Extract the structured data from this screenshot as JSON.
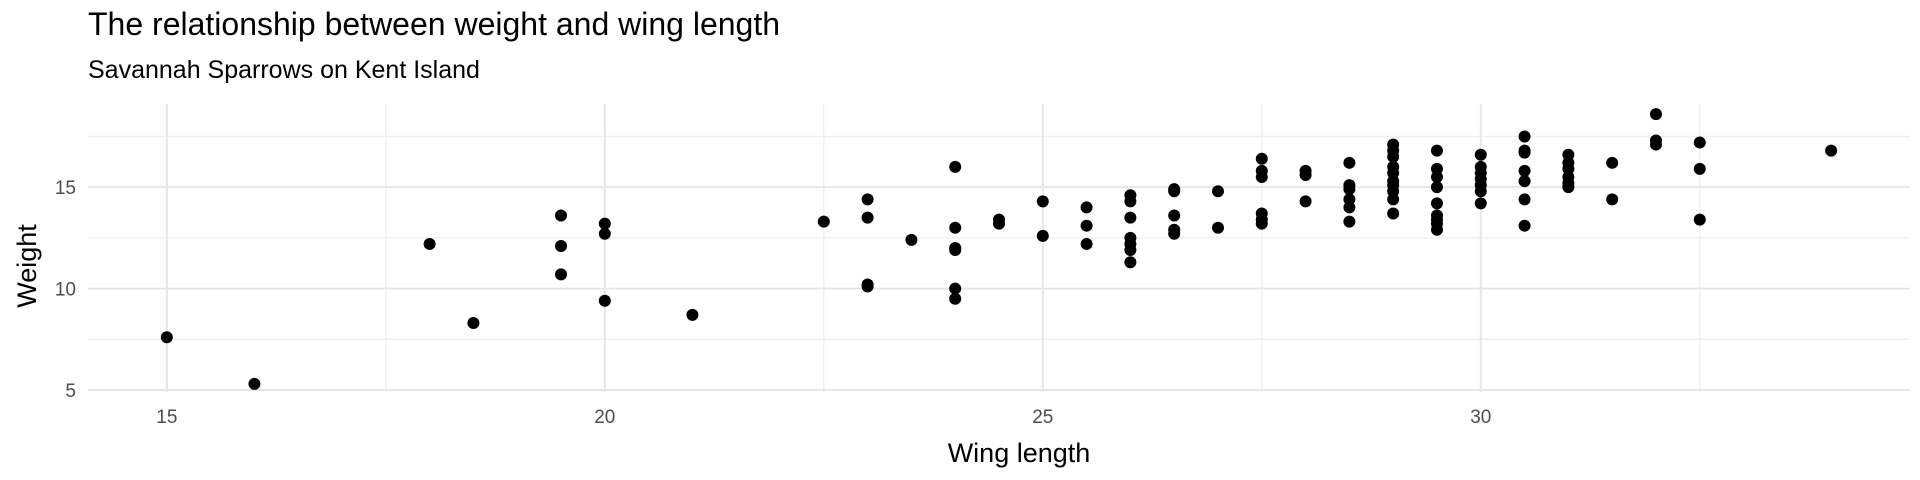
{
  "chart_data": {
    "type": "scatter",
    "title": "The relationship between weight and wing length",
    "subtitle": "Savannah Sparrows on Kent Island",
    "xlabel": "Wing length",
    "ylabel": "Weight",
    "xlim": [
      14.1,
      34.9
    ],
    "ylim": [
      4.9,
      19.1
    ],
    "xticks": [
      15,
      20,
      25,
      30
    ],
    "yticks": [
      5,
      10,
      15
    ],
    "grid": true,
    "color": "#000000",
    "points": [
      [
        15,
        7.6
      ],
      [
        16,
        5.3
      ],
      [
        18,
        12.2
      ],
      [
        18.5,
        8.3
      ],
      [
        19.5,
        13.6
      ],
      [
        19.5,
        12.1
      ],
      [
        19.5,
        10.7
      ],
      [
        20,
        13.2
      ],
      [
        20,
        12.7
      ],
      [
        20,
        9.4
      ],
      [
        21,
        8.7
      ],
      [
        22.5,
        13.3
      ],
      [
        23,
        14.4
      ],
      [
        23,
        13.5
      ],
      [
        23,
        10.2
      ],
      [
        23,
        10.1
      ],
      [
        23.5,
        12.4
      ],
      [
        24,
        16.0
      ],
      [
        24,
        13.0
      ],
      [
        24,
        12.0
      ],
      [
        24,
        11.9
      ],
      [
        24,
        10.0
      ],
      [
        24,
        9.5
      ],
      [
        24.5,
        13.4
      ],
      [
        24.5,
        13.2
      ],
      [
        25,
        14.3
      ],
      [
        25,
        12.6
      ],
      [
        25.5,
        14.0
      ],
      [
        25.5,
        13.1
      ],
      [
        25.5,
        12.2
      ],
      [
        26,
        14.6
      ],
      [
        26,
        14.3
      ],
      [
        26,
        13.5
      ],
      [
        26,
        12.5
      ],
      [
        26,
        12.2
      ],
      [
        26,
        11.9
      ],
      [
        26,
        11.3
      ],
      [
        26.5,
        14.9
      ],
      [
        26.5,
        14.8
      ],
      [
        26.5,
        13.6
      ],
      [
        26.5,
        12.9
      ],
      [
        26.5,
        12.7
      ],
      [
        27,
        14.8
      ],
      [
        27,
        13.0
      ],
      [
        27.5,
        16.4
      ],
      [
        27.5,
        15.8
      ],
      [
        27.5,
        15.5
      ],
      [
        27.5,
        13.7
      ],
      [
        27.5,
        13.4
      ],
      [
        27.5,
        13.2
      ],
      [
        28,
        15.8
      ],
      [
        28,
        15.6
      ],
      [
        28,
        14.3
      ],
      [
        28.5,
        16.2
      ],
      [
        28.5,
        15.1
      ],
      [
        28.5,
        14.9
      ],
      [
        28.5,
        14.4
      ],
      [
        28.5,
        14.0
      ],
      [
        28.5,
        13.3
      ],
      [
        29,
        17.1
      ],
      [
        29,
        16.8
      ],
      [
        29,
        16.5
      ],
      [
        29,
        16.0
      ],
      [
        29,
        15.7
      ],
      [
        29,
        15.3
      ],
      [
        29,
        15.1
      ],
      [
        29,
        14.8
      ],
      [
        29,
        14.4
      ],
      [
        29,
        13.7
      ],
      [
        29.5,
        16.8
      ],
      [
        29.5,
        15.9
      ],
      [
        29.5,
        15.5
      ],
      [
        29.5,
        15.0
      ],
      [
        29.5,
        14.2
      ],
      [
        29.5,
        13.6
      ],
      [
        29.5,
        13.4
      ],
      [
        29.5,
        13.2
      ],
      [
        29.5,
        12.9
      ],
      [
        30,
        16.6
      ],
      [
        30,
        16.0
      ],
      [
        30,
        15.7
      ],
      [
        30,
        15.4
      ],
      [
        30,
        15.1
      ],
      [
        30,
        14.8
      ],
      [
        30,
        14.2
      ],
      [
        30.5,
        17.5
      ],
      [
        30.5,
        16.8
      ],
      [
        30.5,
        16.7
      ],
      [
        30.5,
        15.8
      ],
      [
        30.5,
        15.3
      ],
      [
        30.5,
        14.4
      ],
      [
        30.5,
        13.1
      ],
      [
        31,
        16.6
      ],
      [
        31,
        16.2
      ],
      [
        31,
        15.9
      ],
      [
        31,
        15.5
      ],
      [
        31,
        15.2
      ],
      [
        31,
        15.0
      ],
      [
        31.5,
        16.2
      ],
      [
        31.5,
        14.4
      ],
      [
        32,
        18.6
      ],
      [
        32,
        17.3
      ],
      [
        32,
        17.1
      ],
      [
        32.5,
        17.2
      ],
      [
        32.5,
        15.9
      ],
      [
        32.5,
        13.4
      ],
      [
        34,
        16.8
      ]
    ]
  }
}
